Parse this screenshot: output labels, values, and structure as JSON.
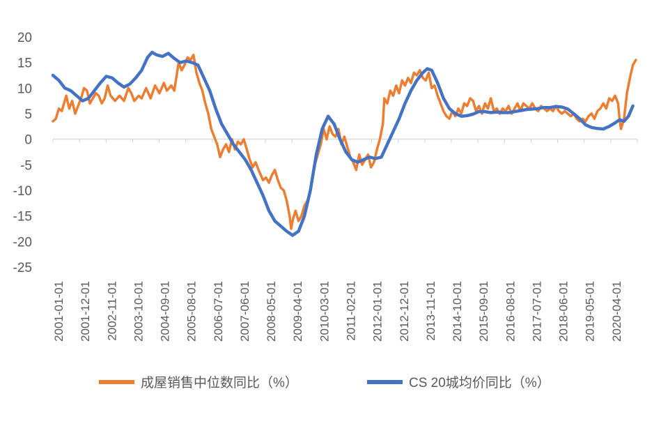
{
  "chart_data": {
    "type": "line",
    "title": "",
    "xlabel": "",
    "ylabel": "",
    "ylim": [
      -25,
      20
    ],
    "yticks": [
      20,
      15,
      10,
      5,
      0,
      -5,
      -10,
      -15,
      -20,
      -25
    ],
    "x_tick_labels": [
      "2001-01-01",
      "2001-12-01",
      "2002-11-01",
      "2003-10-01",
      "2004-09-01",
      "2005-08-01",
      "2006-07-01",
      "2007-06-01",
      "2008-05-01",
      "2009-04-01",
      "2010-03-01",
      "2011-02-01",
      "2012-01-01",
      "2012-12-01",
      "2013-11-01",
      "2014-10-01",
      "2015-09-01",
      "2016-08-01",
      "2017-07-01",
      "2018-06-01",
      "2019-05-01",
      "2020-04-01"
    ],
    "x_range": [
      2001.0,
      2020.75
    ],
    "legend_position": "bottom",
    "series": [
      {
        "name": "成屋销售中位数同比（%）",
        "color": "#ED7D31",
        "points": [
          [
            2001.0,
            3.5
          ],
          [
            2001.1,
            4.0
          ],
          [
            2001.2,
            6.0
          ],
          [
            2001.3,
            5.5
          ],
          [
            2001.45,
            8.5
          ],
          [
            2001.55,
            6.0
          ],
          [
            2001.65,
            7.5
          ],
          [
            2001.75,
            5.0
          ],
          [
            2001.85,
            6.5
          ],
          [
            2001.95,
            8.0
          ],
          [
            2002.05,
            10.0
          ],
          [
            2002.15,
            9.5
          ],
          [
            2002.25,
            7.0
          ],
          [
            2002.35,
            8.0
          ],
          [
            2002.45,
            9.0
          ],
          [
            2002.55,
            8.5
          ],
          [
            2002.65,
            7.0
          ],
          [
            2002.75,
            8.0
          ],
          [
            2002.85,
            10.5
          ],
          [
            2002.95,
            8.5
          ],
          [
            2003.1,
            7.5
          ],
          [
            2003.25,
            8.5
          ],
          [
            2003.4,
            7.5
          ],
          [
            2003.55,
            10.0
          ],
          [
            2003.65,
            9.0
          ],
          [
            2003.75,
            7.5
          ],
          [
            2003.9,
            8.5
          ],
          [
            2004.0,
            8.0
          ],
          [
            2004.15,
            10.0
          ],
          [
            2004.3,
            8.0
          ],
          [
            2004.45,
            10.5
          ],
          [
            2004.6,
            9.0
          ],
          [
            2004.75,
            11.0
          ],
          [
            2004.85,
            9.5
          ],
          [
            2005.0,
            10.5
          ],
          [
            2005.1,
            9.5
          ],
          [
            2005.25,
            15.0
          ],
          [
            2005.35,
            13.5
          ],
          [
            2005.45,
            14.5
          ],
          [
            2005.55,
            16.0
          ],
          [
            2005.65,
            15.5
          ],
          [
            2005.75,
            16.5
          ],
          [
            2005.85,
            13.0
          ],
          [
            2005.95,
            11.0
          ],
          [
            2006.05,
            9.5
          ],
          [
            2006.15,
            7.0
          ],
          [
            2006.25,
            5.0
          ],
          [
            2006.35,
            2.0
          ],
          [
            2006.45,
            0.5
          ],
          [
            2006.55,
            -1.0
          ],
          [
            2006.65,
            -3.5
          ],
          [
            2006.75,
            -2.0
          ],
          [
            2006.85,
            -1.0
          ],
          [
            2006.95,
            -2.5
          ],
          [
            2007.05,
            0.0
          ],
          [
            2007.15,
            -2.0
          ],
          [
            2007.25,
            -0.5
          ],
          [
            2007.35,
            -1.0
          ],
          [
            2007.45,
            0.0
          ],
          [
            2007.55,
            -2.0
          ],
          [
            2007.65,
            -4.0
          ],
          [
            2007.75,
            -5.5
          ],
          [
            2007.85,
            -4.5
          ],
          [
            2007.95,
            -6.0
          ],
          [
            2008.1,
            -8.0
          ],
          [
            2008.2,
            -7.5
          ],
          [
            2008.3,
            -8.5
          ],
          [
            2008.4,
            -7.0
          ],
          [
            2008.5,
            -6.0
          ],
          [
            2008.6,
            -8.0
          ],
          [
            2008.7,
            -9.5
          ],
          [
            2008.8,
            -10.0
          ],
          [
            2008.9,
            -12.0
          ],
          [
            2009.0,
            -15.0
          ],
          [
            2009.05,
            -17.5
          ],
          [
            2009.12,
            -15.5
          ],
          [
            2009.2,
            -14.0
          ],
          [
            2009.3,
            -16.0
          ],
          [
            2009.4,
            -15.0
          ],
          [
            2009.5,
            -13.0
          ],
          [
            2009.6,
            -12.0
          ],
          [
            2009.7,
            -10.0
          ],
          [
            2009.75,
            -8.0
          ],
          [
            2009.85,
            -5.0
          ],
          [
            2009.95,
            -3.0
          ],
          [
            2010.05,
            -1.0
          ],
          [
            2010.15,
            2.0
          ],
          [
            2010.25,
            0.0
          ],
          [
            2010.35,
            2.5
          ],
          [
            2010.45,
            1.0
          ],
          [
            2010.55,
            0.5
          ],
          [
            2010.65,
            2.0
          ],
          [
            2010.75,
            -1.0
          ],
          [
            2010.85,
            0.5
          ],
          [
            2010.95,
            -1.5
          ],
          [
            2011.05,
            -3.5
          ],
          [
            2011.15,
            -4.5
          ],
          [
            2011.25,
            -6.0
          ],
          [
            2011.35,
            -3.0
          ],
          [
            2011.45,
            -5.0
          ],
          [
            2011.55,
            -4.0
          ],
          [
            2011.65,
            -3.0
          ],
          [
            2011.75,
            -5.5
          ],
          [
            2011.85,
            -4.5
          ],
          [
            2011.95,
            -2.0
          ],
          [
            2012.05,
            0.0
          ],
          [
            2012.15,
            3.0
          ],
          [
            2012.2,
            8.0
          ],
          [
            2012.3,
            7.0
          ],
          [
            2012.4,
            9.5
          ],
          [
            2012.5,
            8.5
          ],
          [
            2012.6,
            10.5
          ],
          [
            2012.7,
            9.0
          ],
          [
            2012.8,
            11.5
          ],
          [
            2012.9,
            10.5
          ],
          [
            2013.0,
            12.0
          ],
          [
            2013.1,
            11.0
          ],
          [
            2013.2,
            13.0
          ],
          [
            2013.3,
            12.5
          ],
          [
            2013.4,
            13.5
          ],
          [
            2013.5,
            12.0
          ],
          [
            2013.6,
            11.5
          ],
          [
            2013.7,
            13.0
          ],
          [
            2013.8,
            10.0
          ],
          [
            2013.9,
            10.5
          ],
          [
            2014.0,
            8.5
          ],
          [
            2014.1,
            7.0
          ],
          [
            2014.2,
            5.5
          ],
          [
            2014.3,
            4.5
          ],
          [
            2014.4,
            4.0
          ],
          [
            2014.5,
            5.5
          ],
          [
            2014.6,
            4.5
          ],
          [
            2014.7,
            6.0
          ],
          [
            2014.8,
            5.0
          ],
          [
            2014.9,
            7.0
          ],
          [
            2015.0,
            6.5
          ],
          [
            2015.1,
            8.0
          ],
          [
            2015.2,
            7.5
          ],
          [
            2015.3,
            5.5
          ],
          [
            2015.4,
            6.5
          ],
          [
            2015.5,
            5.0
          ],
          [
            2015.6,
            7.0
          ],
          [
            2015.7,
            6.0
          ],
          [
            2015.8,
            8.0
          ],
          [
            2015.9,
            5.5
          ],
          [
            2016.0,
            6.0
          ],
          [
            2016.1,
            5.0
          ],
          [
            2016.2,
            6.0
          ],
          [
            2016.3,
            5.5
          ],
          [
            2016.4,
            6.5
          ],
          [
            2016.5,
            5.0
          ],
          [
            2016.6,
            6.0
          ],
          [
            2016.7,
            7.0
          ],
          [
            2016.8,
            5.5
          ],
          [
            2016.9,
            7.0
          ],
          [
            2017.0,
            6.5
          ],
          [
            2017.1,
            6.0
          ],
          [
            2017.2,
            7.0
          ],
          [
            2017.3,
            6.0
          ],
          [
            2017.4,
            5.5
          ],
          [
            2017.5,
            6.5
          ],
          [
            2017.6,
            6.0
          ],
          [
            2017.7,
            5.5
          ],
          [
            2017.8,
            6.0
          ],
          [
            2017.9,
            5.5
          ],
          [
            2018.0,
            6.5
          ],
          [
            2018.1,
            5.5
          ],
          [
            2018.2,
            5.0
          ],
          [
            2018.3,
            5.5
          ],
          [
            2018.4,
            5.0
          ],
          [
            2018.5,
            4.5
          ],
          [
            2018.6,
            5.0
          ],
          [
            2018.7,
            4.0
          ],
          [
            2018.8,
            3.5
          ],
          [
            2018.9,
            4.0
          ],
          [
            2019.0,
            3.5
          ],
          [
            2019.1,
            4.5
          ],
          [
            2019.2,
            5.0
          ],
          [
            2019.3,
            4.0
          ],
          [
            2019.4,
            5.5
          ],
          [
            2019.5,
            6.0
          ],
          [
            2019.6,
            7.0
          ],
          [
            2019.7,
            6.0
          ],
          [
            2019.8,
            8.0
          ],
          [
            2019.9,
            7.5
          ],
          [
            2020.0,
            8.5
          ],
          [
            2020.1,
            7.0
          ],
          [
            2020.15,
            4.0
          ],
          [
            2020.2,
            2.0
          ],
          [
            2020.3,
            4.0
          ],
          [
            2020.4,
            9.0
          ],
          [
            2020.5,
            12.0
          ],
          [
            2020.6,
            14.5
          ],
          [
            2020.7,
            15.5
          ]
        ]
      },
      {
        "name": "CS 20城均价同比（%）",
        "color": "#4472C4",
        "points": [
          [
            2001.0,
            12.5
          ],
          [
            2001.2,
            11.5
          ],
          [
            2001.4,
            10.0
          ],
          [
            2001.6,
            9.5
          ],
          [
            2001.8,
            8.5
          ],
          [
            2002.0,
            7.5
          ],
          [
            2002.2,
            8.0
          ],
          [
            2002.4,
            9.5
          ],
          [
            2002.6,
            11.0
          ],
          [
            2002.8,
            12.3
          ],
          [
            2003.0,
            12.0
          ],
          [
            2003.2,
            11.0
          ],
          [
            2003.4,
            10.2
          ],
          [
            2003.6,
            10.8
          ],
          [
            2003.8,
            12.0
          ],
          [
            2004.0,
            13.5
          ],
          [
            2004.2,
            16.0
          ],
          [
            2004.35,
            17.0
          ],
          [
            2004.5,
            16.5
          ],
          [
            2004.7,
            16.2
          ],
          [
            2004.9,
            16.8
          ],
          [
            2005.1,
            15.8
          ],
          [
            2005.3,
            15.0
          ],
          [
            2005.5,
            15.3
          ],
          [
            2005.7,
            15.0
          ],
          [
            2005.9,
            14.5
          ],
          [
            2006.1,
            12.0
          ],
          [
            2006.3,
            9.5
          ],
          [
            2006.5,
            6.0
          ],
          [
            2006.7,
            3.0
          ],
          [
            2006.9,
            1.0
          ],
          [
            2007.1,
            -1.0
          ],
          [
            2007.3,
            -2.5
          ],
          [
            2007.5,
            -4.0
          ],
          [
            2007.7,
            -6.0
          ],
          [
            2007.9,
            -8.5
          ],
          [
            2008.1,
            -11.0
          ],
          [
            2008.3,
            -14.0
          ],
          [
            2008.5,
            -16.0
          ],
          [
            2008.7,
            -17.0
          ],
          [
            2008.9,
            -18.0
          ],
          [
            2009.1,
            -18.8
          ],
          [
            2009.3,
            -18.0
          ],
          [
            2009.5,
            -15.0
          ],
          [
            2009.7,
            -10.0
          ],
          [
            2009.9,
            -3.0
          ],
          [
            2010.1,
            2.0
          ],
          [
            2010.3,
            4.5
          ],
          [
            2010.5,
            3.0
          ],
          [
            2010.7,
            0.0
          ],
          [
            2010.9,
            -2.5
          ],
          [
            2011.1,
            -4.0
          ],
          [
            2011.3,
            -4.5
          ],
          [
            2011.5,
            -4.0
          ],
          [
            2011.7,
            -3.5
          ],
          [
            2011.9,
            -3.8
          ],
          [
            2012.1,
            -3.5
          ],
          [
            2012.3,
            -1.0
          ],
          [
            2012.5,
            1.5
          ],
          [
            2012.7,
            4.0
          ],
          [
            2012.9,
            7.0
          ],
          [
            2013.1,
            9.5
          ],
          [
            2013.3,
            11.5
          ],
          [
            2013.5,
            13.0
          ],
          [
            2013.65,
            13.8
          ],
          [
            2013.8,
            13.5
          ],
          [
            2014.0,
            11.0
          ],
          [
            2014.2,
            8.0
          ],
          [
            2014.4,
            6.0
          ],
          [
            2014.6,
            5.0
          ],
          [
            2014.8,
            4.5
          ],
          [
            2015.0,
            4.6
          ],
          [
            2015.2,
            4.9
          ],
          [
            2015.4,
            5.4
          ],
          [
            2015.6,
            5.4
          ],
          [
            2015.8,
            5.2
          ],
          [
            2016.0,
            5.3
          ],
          [
            2016.2,
            5.2
          ],
          [
            2016.4,
            5.2
          ],
          [
            2016.6,
            5.4
          ],
          [
            2016.8,
            5.6
          ],
          [
            2017.0,
            5.8
          ],
          [
            2017.2,
            5.9
          ],
          [
            2017.4,
            6.0
          ],
          [
            2017.6,
            6.2
          ],
          [
            2017.8,
            6.2
          ],
          [
            2018.0,
            6.4
          ],
          [
            2018.2,
            6.3
          ],
          [
            2018.4,
            5.9
          ],
          [
            2018.6,
            5.0
          ],
          [
            2018.8,
            4.0
          ],
          [
            2019.0,
            2.8
          ],
          [
            2019.2,
            2.3
          ],
          [
            2019.4,
            2.1
          ],
          [
            2019.6,
            2.0
          ],
          [
            2019.8,
            2.5
          ],
          [
            2020.0,
            3.2
          ],
          [
            2020.15,
            3.8
          ],
          [
            2020.3,
            3.5
          ],
          [
            2020.45,
            4.5
          ],
          [
            2020.6,
            6.5
          ]
        ]
      }
    ]
  }
}
